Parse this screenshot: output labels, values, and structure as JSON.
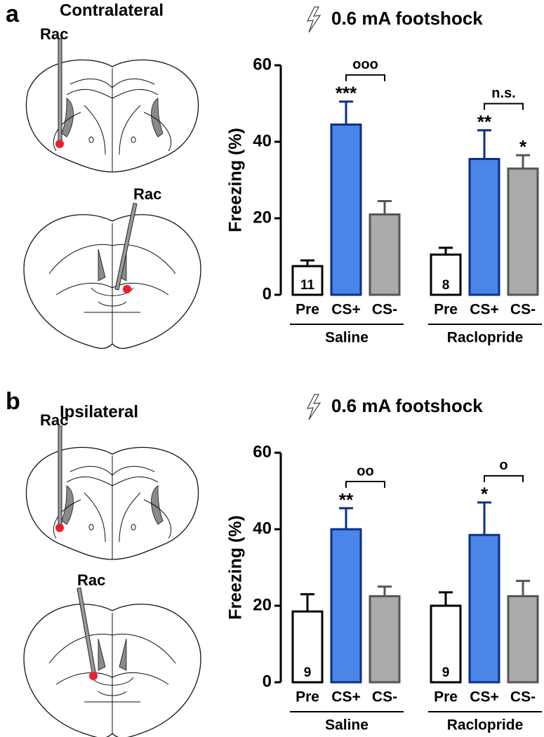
{
  "chart_data": [
    {
      "type": "bar",
      "panel_label": "a",
      "panel_title": "Contralateral",
      "probe_labels": [
        "Rac",
        "Rac"
      ],
      "title": "0.6 mA footshock",
      "ylabel": "Freezing (%)",
      "categories": [
        "Pre",
        "CS+",
        "CS-",
        "Pre",
        "CS+",
        "CS-"
      ],
      "groups": [
        "Saline",
        "Raclopride"
      ],
      "values": [
        7.5,
        44.5,
        21,
        10.5,
        35.5,
        33
      ],
      "errors": [
        1.5,
        6,
        3.5,
        1.8,
        7.5,
        3.5
      ],
      "colors": [
        "#ffffff",
        "#4a86e8",
        "#aaaaaa",
        "#ffffff",
        "#4a86e8",
        "#aaaaaa"
      ],
      "edge_colors": [
        "#000000",
        "#0b2f8a",
        "#555555",
        "#000000",
        "#0b2f8a",
        "#555555"
      ],
      "n_labels": [
        11,
        null,
        null,
        8,
        null,
        null
      ],
      "significance": [
        null,
        "***",
        null,
        null,
        "**",
        "*"
      ],
      "comparisons": [
        {
          "label": "ooo",
          "between": [
            1,
            2
          ]
        },
        {
          "label": "n.s.",
          "between": [
            4,
            5
          ]
        }
      ],
      "ylim": [
        0,
        60
      ],
      "yticks": [
        0,
        20,
        40,
        60
      ]
    },
    {
      "type": "bar",
      "panel_label": "b",
      "panel_title": "Ipsilateral",
      "probe_labels": [
        "Rac",
        "Rac"
      ],
      "title": "0.6 mA footshock",
      "ylabel": "Freezing (%)",
      "categories": [
        "Pre",
        "CS+",
        "CS-",
        "Pre",
        "CS+",
        "CS-"
      ],
      "groups": [
        "Saline",
        "Raclopride"
      ],
      "values": [
        18.5,
        40,
        22.5,
        20,
        38.5,
        22.5
      ],
      "errors": [
        4.5,
        5.5,
        2.5,
        3.5,
        8.5,
        4
      ],
      "colors": [
        "#ffffff",
        "#4a86e8",
        "#aaaaaa",
        "#ffffff",
        "#4a86e8",
        "#aaaaaa"
      ],
      "edge_colors": [
        "#000000",
        "#0b2f8a",
        "#555555",
        "#000000",
        "#0b2f8a",
        "#555555"
      ],
      "n_labels": [
        9,
        null,
        null,
        9,
        null,
        null
      ],
      "significance": [
        null,
        "**",
        null,
        null,
        "*",
        null
      ],
      "comparisons": [
        {
          "label": "oo",
          "between": [
            1,
            2
          ]
        },
        {
          "label": "o",
          "between": [
            4,
            5
          ]
        }
      ],
      "ylim": [
        0,
        60
      ],
      "yticks": [
        0,
        20,
        40,
        60
      ]
    }
  ]
}
